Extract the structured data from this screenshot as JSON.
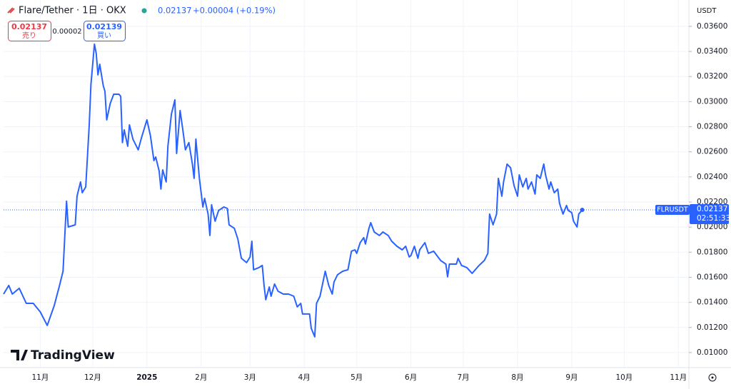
{
  "chart_data": {
    "type": "line",
    "title": "Flare/Tether · 1日 · OKX",
    "header_price": 0.02137,
    "header_change": "+0.00004 (+0.19%)",
    "sell": {
      "price": 0.02137,
      "label": "売り"
    },
    "spread": 2e-05,
    "buy": {
      "price": 0.02139,
      "label": "買い"
    },
    "currency": "USDT",
    "symbol": "FLRUSDT",
    "last_price": 0.02137,
    "countdown": "02:51:33",
    "logo_text": "TradingView",
    "grid": true,
    "series": [
      {
        "name": "FLRUSDT",
        "color": "#2962ff",
        "x": [
          -21,
          -18,
          -16,
          -12,
          -8,
          -4,
          0,
          4,
          8,
          11,
          13,
          15,
          16,
          20,
          21,
          23,
          24,
          26,
          28,
          29,
          31,
          32,
          33,
          34,
          36,
          37,
          38,
          40,
          42,
          45,
          46,
          47,
          48,
          50,
          51,
          53,
          56,
          58,
          61,
          63,
          65,
          66,
          68,
          69,
          70,
          72,
          73,
          75,
          77,
          78,
          80,
          82,
          83,
          85,
          87,
          88,
          89,
          91,
          93,
          94,
          96,
          97,
          98,
          100,
          102,
          105,
          107,
          108,
          111,
          113,
          115,
          118,
          120,
          121,
          122,
          125,
          127,
          128,
          129,
          131,
          132,
          134,
          136,
          139,
          142,
          145,
          147,
          149,
          150,
          154,
          155,
          157,
          158,
          160,
          163,
          165,
          167,
          168,
          170,
          173,
          176,
          178,
          180,
          181,
          183,
          185,
          186,
          188,
          189,
          191,
          194,
          196,
          199,
          201,
          204,
          207,
          209,
          211,
          212,
          214,
          216,
          217,
          220,
          222,
          225,
          229,
          232,
          233,
          234,
          238,
          239,
          241,
          244,
          247,
          251,
          254,
          256,
          257,
          259,
          261,
          262,
          264,
          265,
          267,
          269,
          271,
          273,
          274,
          276,
          278,
          279,
          281,
          283,
          284,
          286,
          288,
          289,
          291,
          292,
          294,
          296,
          297,
          299,
          301,
          302,
          304,
          305,
          307,
          308,
          310
        ],
        "values": [
          0.01466,
          0.01535,
          0.01466,
          0.01512,
          0.01392,
          0.01392,
          0.01324,
          0.01216,
          0.01375,
          0.01535,
          0.01648,
          0.02206,
          0.02001,
          0.02018,
          0.02246,
          0.0236,
          0.02274,
          0.0232,
          0.02815,
          0.03139,
          0.03458,
          0.03384,
          0.03213,
          0.03298,
          0.03128,
          0.03082,
          0.02855,
          0.02985,
          0.03059,
          0.03059,
          0.03042,
          0.02673,
          0.02775,
          0.02644,
          0.02815,
          0.02701,
          0.02616,
          0.02718,
          0.02855,
          0.02729,
          0.0253,
          0.02559,
          0.02445,
          0.02303,
          0.02456,
          0.0236,
          0.02644,
          0.029,
          0.03014,
          0.02587,
          0.02929,
          0.02729,
          0.02616,
          0.02673,
          0.02502,
          0.02388,
          0.02701,
          0.02388,
          0.0216,
          0.02229,
          0.02104,
          0.01933,
          0.02178,
          0.02047,
          0.02132,
          0.0216,
          0.02149,
          0.02018,
          0.0199,
          0.01904,
          0.01751,
          0.01717,
          0.01762,
          0.01887,
          0.0166,
          0.01677,
          0.01694,
          0.01535,
          0.01421,
          0.01523,
          0.01449,
          0.01546,
          0.01489,
          0.01466,
          0.01466,
          0.01449,
          0.01364,
          0.01392,
          0.01307,
          0.01307,
          0.01193,
          0.01125,
          0.01392,
          0.01449,
          0.01648,
          0.01535,
          0.01466,
          0.01563,
          0.0162,
          0.01648,
          0.0166,
          0.01808,
          0.01819,
          0.01791,
          0.01876,
          0.01916,
          0.01865,
          0.0199,
          0.02035,
          0.01961,
          0.01933,
          0.01961,
          0.01933,
          0.01887,
          0.01847,
          0.01819,
          0.01847,
          0.01762,
          0.01773,
          0.01847,
          0.01751,
          0.01819,
          0.01876,
          0.01791,
          0.01808,
          0.01734,
          0.01705,
          0.01603,
          0.01705,
          0.01705,
          0.01751,
          0.01694,
          0.01677,
          0.01631,
          0.01694,
          0.01734,
          0.01791,
          0.02104,
          0.02018,
          0.02104,
          0.02388,
          0.02246,
          0.0236,
          0.02502,
          0.02473,
          0.02331,
          0.02246,
          0.02416,
          0.0232,
          0.02388,
          0.02303,
          0.0236,
          0.02263,
          0.02416,
          0.02388,
          0.02502,
          0.02416,
          0.02303,
          0.0236,
          0.02274,
          0.02303,
          0.02189,
          0.02104,
          0.02172,
          0.02132,
          0.02115,
          0.02047,
          0.02001,
          0.02104,
          0.02137
        ]
      }
    ],
    "xlim": [
      -21,
      371
    ],
    "xticks": [
      {
        "value": 0,
        "label": "11月"
      },
      {
        "value": 30,
        "label": "12月"
      },
      {
        "value": 61,
        "label": "2025"
      },
      {
        "value": 92,
        "label": "2月"
      },
      {
        "value": 120,
        "label": "3月"
      },
      {
        "value": 151,
        "label": "4月"
      },
      {
        "value": 181,
        "label": "5月"
      },
      {
        "value": 212,
        "label": "6月"
      },
      {
        "value": 242,
        "label": "7月"
      },
      {
        "value": 273,
        "label": "8月"
      },
      {
        "value": 304,
        "label": "9月"
      },
      {
        "value": 334,
        "label": "10月"
      },
      {
        "value": 365,
        "label": "11月"
      }
    ],
    "ylim": [
      0.0088,
      0.0381
    ],
    "yticks": [
      {
        "value": 0.036,
        "label": "0.03600"
      },
      {
        "value": 0.034,
        "label": "0.03400"
      },
      {
        "value": 0.032,
        "label": "0.03200"
      },
      {
        "value": 0.03,
        "label": "0.03000"
      },
      {
        "value": 0.028,
        "label": "0.02800"
      },
      {
        "value": 0.026,
        "label": "0.02600"
      },
      {
        "value": 0.024,
        "label": "0.02400"
      },
      {
        "value": 0.022,
        "label": "0.02200"
      },
      {
        "value": 0.02,
        "label": "0.02000"
      },
      {
        "value": 0.018,
        "label": "0.01800"
      },
      {
        "value": 0.016,
        "label": "0.01600"
      },
      {
        "value": 0.014,
        "label": "0.01400"
      },
      {
        "value": 0.012,
        "label": "0.01200"
      },
      {
        "value": 0.01,
        "label": "0.01000"
      }
    ]
  }
}
